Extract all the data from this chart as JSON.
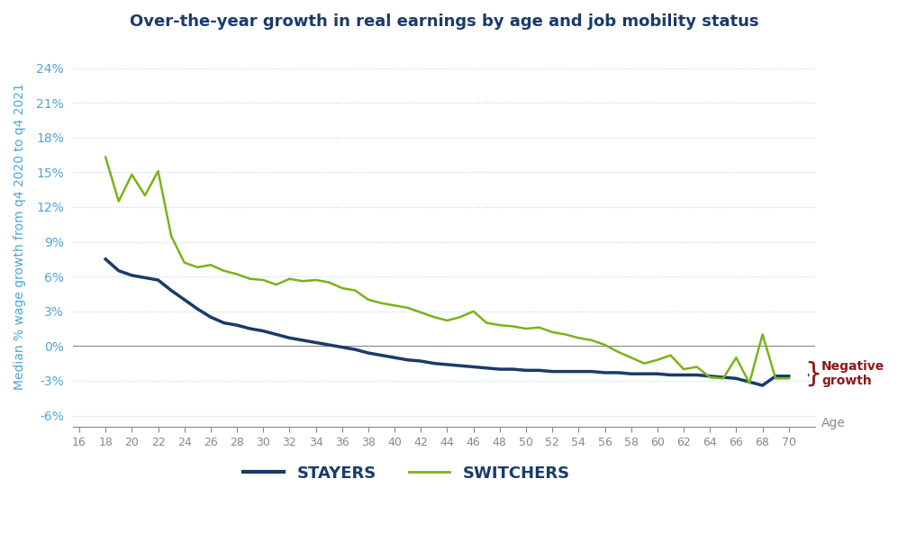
{
  "title": "Over-the-year growth in real earnings by age and job mobility status",
  "ylabel": "Median % wage growth from q4 2020 to q4 2021",
  "xlabel": "Age",
  "ylim": [
    -0.07,
    0.26
  ],
  "yticks": [
    -0.06,
    -0.03,
    0.0,
    0.03,
    0.06,
    0.09,
    0.12,
    0.15,
    0.18,
    0.21,
    0.24
  ],
  "ytick_labels": [
    "-6%",
    "-3%",
    "0%",
    "3%",
    "6%",
    "9%",
    "12%",
    "15%",
    "18%",
    "21%",
    "24%"
  ],
  "xticks": [
    16,
    18,
    20,
    22,
    24,
    26,
    28,
    30,
    32,
    34,
    36,
    38,
    40,
    42,
    44,
    46,
    48,
    50,
    52,
    54,
    56,
    58,
    60,
    62,
    64,
    66,
    68,
    70
  ],
  "stayers_x": [
    18,
    19,
    20,
    21,
    22,
    23,
    24,
    25,
    26,
    27,
    28,
    29,
    30,
    31,
    32,
    33,
    34,
    35,
    36,
    37,
    38,
    39,
    40,
    41,
    42,
    43,
    44,
    45,
    46,
    47,
    48,
    49,
    50,
    51,
    52,
    53,
    54,
    55,
    56,
    57,
    58,
    59,
    60,
    61,
    62,
    63,
    64,
    65,
    66,
    67,
    68,
    69,
    70
  ],
  "stayers_y": [
    0.075,
    0.065,
    0.061,
    0.059,
    0.057,
    0.048,
    0.04,
    0.032,
    0.025,
    0.02,
    0.018,
    0.015,
    0.013,
    0.01,
    0.007,
    0.005,
    0.003,
    0.001,
    -0.001,
    -0.003,
    -0.006,
    -0.008,
    -0.01,
    -0.012,
    -0.013,
    -0.015,
    -0.016,
    -0.017,
    -0.018,
    -0.019,
    -0.02,
    -0.02,
    -0.021,
    -0.021,
    -0.022,
    -0.022,
    -0.022,
    -0.022,
    -0.023,
    -0.023,
    -0.024,
    -0.024,
    -0.024,
    -0.025,
    -0.025,
    -0.025,
    -0.026,
    -0.027,
    -0.028,
    -0.031,
    -0.034,
    -0.026,
    -0.026
  ],
  "switchers_x": [
    18,
    19,
    20,
    21,
    22,
    23,
    24,
    25,
    26,
    27,
    28,
    29,
    30,
    31,
    32,
    33,
    34,
    35,
    36,
    37,
    38,
    39,
    40,
    41,
    42,
    43,
    44,
    45,
    46,
    47,
    48,
    49,
    50,
    51,
    52,
    53,
    54,
    55,
    56,
    57,
    58,
    59,
    60,
    61,
    62,
    63,
    64,
    65,
    66,
    67,
    68,
    69,
    70
  ],
  "switchers_y": [
    0.163,
    0.125,
    0.148,
    0.13,
    0.151,
    0.095,
    0.072,
    0.068,
    0.07,
    0.065,
    0.062,
    0.058,
    0.057,
    0.053,
    0.058,
    0.056,
    0.057,
    0.055,
    0.05,
    0.048,
    0.04,
    0.037,
    0.035,
    0.033,
    0.029,
    0.025,
    0.022,
    0.025,
    0.03,
    0.02,
    0.018,
    0.017,
    0.015,
    0.016,
    0.012,
    0.01,
    0.007,
    0.005,
    0.001,
    -0.005,
    -0.01,
    -0.015,
    -0.012,
    -0.008,
    -0.02,
    -0.018,
    -0.027,
    -0.028,
    -0.01,
    -0.032,
    0.01,
    -0.028,
    -0.028
  ],
  "stayers_color": "#1a3a6b",
  "switchers_color": "#7ab317",
  "grid_color": "#add8e6",
  "zero_line_color": "#888888",
  "title_color": "#1a3a6b",
  "axis_label_color": "#4da6d6",
  "tick_color": "#888888",
  "neg_growth_color": "#8b1a1a",
  "background_color": "#ffffff"
}
